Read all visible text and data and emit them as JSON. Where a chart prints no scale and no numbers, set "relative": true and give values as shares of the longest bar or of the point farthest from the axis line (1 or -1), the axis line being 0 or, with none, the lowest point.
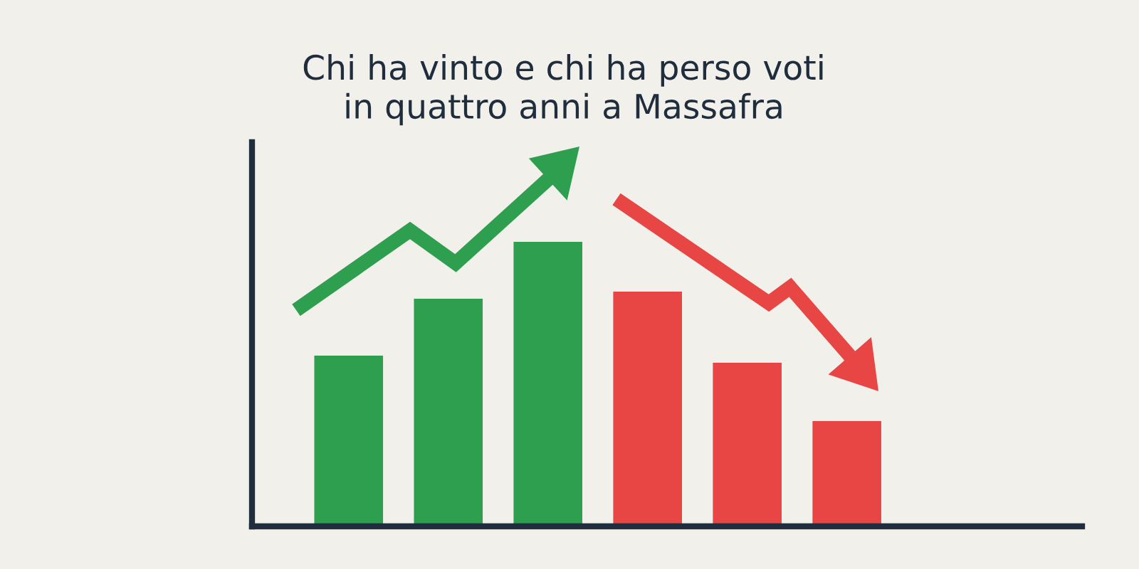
{
  "chart_data": {
    "type": "bar",
    "title": "Chi ha vinto e chi ha perso voti\nin quattro anni a Massafra",
    "categories": [
      null,
      null,
      null,
      null,
      null,
      null
    ],
    "values": [
      0.6,
      0.8,
      1,
      0.825,
      0.575,
      0.37
    ],
    "colors": [
      "#2e9e4f",
      "#2e9e4f",
      "#2e9e4f",
      "#e84545",
      "#e84545",
      "#e84545"
    ],
    "relative": true,
    "grid": false,
    "legend": false,
    "tick_labels": false
  }
}
